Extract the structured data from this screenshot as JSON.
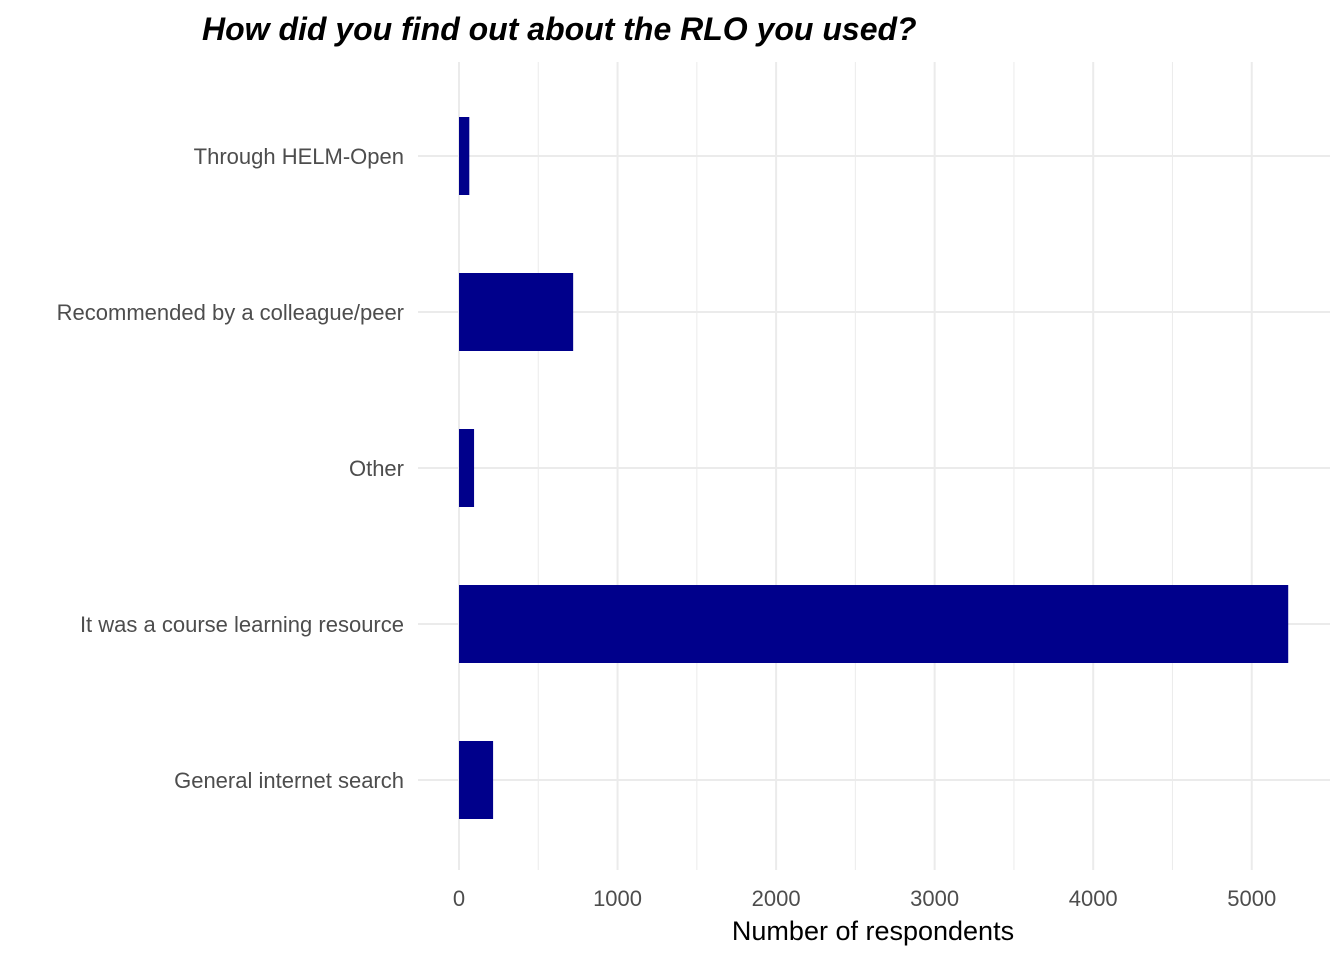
{
  "chart_data": {
    "type": "bar",
    "orientation": "horizontal",
    "title": "How did you find out about the RLO you used?",
    "xlabel": "Number of respondents",
    "ylabel": "",
    "categories": [
      "Through HELM-Open",
      "Recommended by a colleague/peer",
      "Other",
      "It was a course learning resource",
      "General internet search"
    ],
    "values": [
      65,
      720,
      95,
      5230,
      215
    ],
    "xlim": [
      0,
      5500
    ],
    "x_ticks": [
      "0",
      "1000",
      "2000",
      "3000",
      "4000",
      "5000"
    ],
    "grid": true,
    "legend": "none",
    "bar_color": "#00008b",
    "grid_color": "#ebebeb"
  }
}
